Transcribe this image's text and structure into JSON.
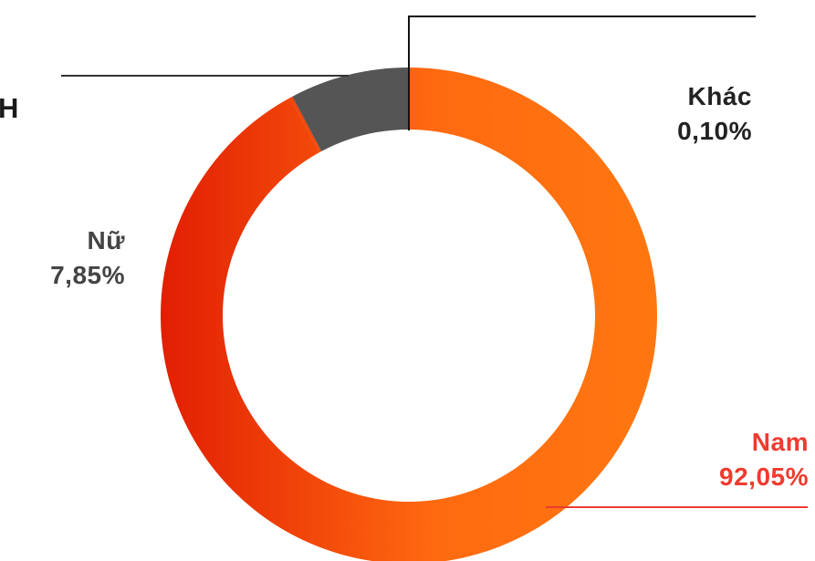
{
  "chart_data": {
    "type": "pie",
    "variant": "donut",
    "categories": [
      "Nam",
      "Nữ",
      "Khác"
    ],
    "values": [
      92.05,
      7.85,
      0.1
    ],
    "value_labels": [
      "92,05%",
      "7,85%",
      "0,10%"
    ],
    "colors": [
      "#ff6a10",
      "#e8300c",
      "#555555"
    ],
    "label_colors": [
      "#ee3b30",
      "#444444",
      "#222222"
    ],
    "gradient": [
      "#e21f03",
      "#ff7710"
    ],
    "title": "",
    "truncated_text": "H",
    "legend": "none"
  }
}
